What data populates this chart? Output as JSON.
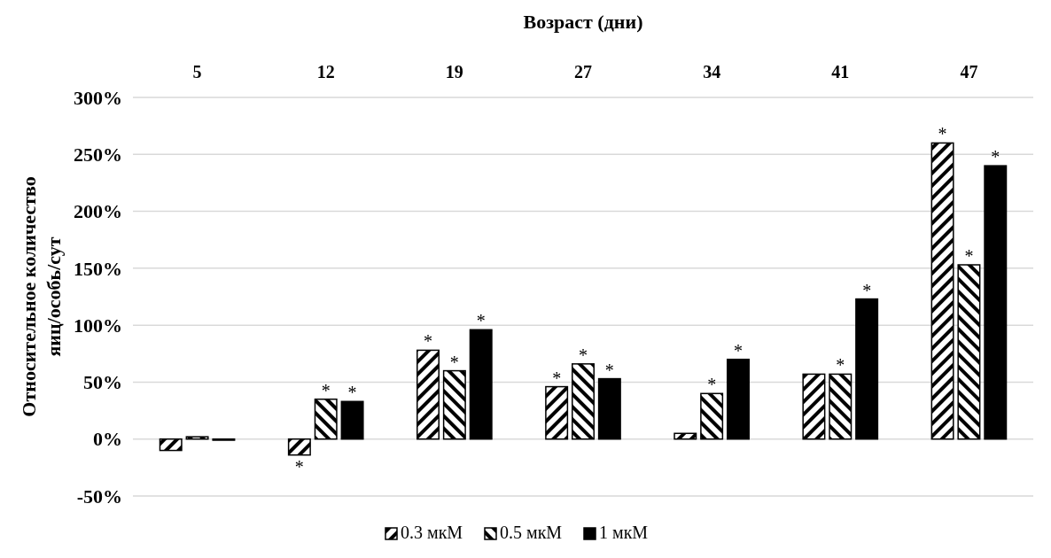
{
  "chart_data": {
    "type": "bar",
    "xlabel": "Возраст (дни)",
    "ylabel": "Относительное количество яиц/особь/сут",
    "categories": [
      "5",
      "12",
      "19",
      "27",
      "34",
      "41",
      "47"
    ],
    "series": [
      {
        "name": "0.3 мкМ",
        "color": "#000000",
        "values": [
          -10,
          -14,
          78,
          46,
          5,
          57,
          260
        ],
        "value_labels": [
          null,
          "*",
          "*",
          "*",
          null,
          null,
          "*"
        ]
      },
      {
        "name": "0.5 мкМ",
        "color": "#000000",
        "values": [
          2,
          35,
          60,
          66,
          40,
          57,
          153
        ],
        "value_labels": [
          null,
          "*",
          "*",
          "*",
          "*",
          "*",
          "*"
        ]
      },
      {
        "name": "1 мкМ",
        "color": "#000000",
        "values": [
          -1,
          33,
          96,
          53,
          70,
          123,
          240
        ],
        "value_labels": [
          null,
          "*",
          "*",
          "*",
          "*",
          "*",
          "*"
        ]
      }
    ],
    "ylim": [
      -50,
      300
    ],
    "yticks": [
      {
        "value": -50,
        "label": "-50%"
      },
      {
        "value": 0,
        "label": "0%"
      },
      {
        "value": 50,
        "label": "50%"
      },
      {
        "value": 100,
        "label": "100%"
      },
      {
        "value": 150,
        "label": "150%"
      },
      {
        "value": 200,
        "label": "200%"
      },
      {
        "value": 250,
        "label": "250%"
      },
      {
        "value": 300,
        "label": "300%"
      }
    ],
    "grid": "y",
    "legend": "bottom"
  }
}
